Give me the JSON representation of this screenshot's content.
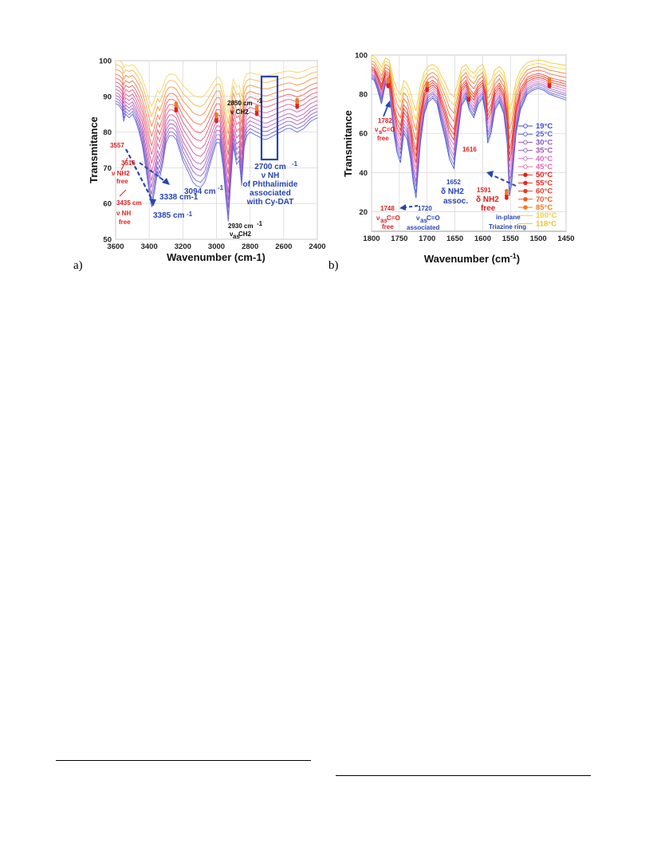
{
  "chart_data": [
    {
      "panel": "a)",
      "type": "line",
      "xlabel": "Wavenumber (cm-1)",
      "ylabel": "Transmitance",
      "xlim": [
        3600,
        2400
      ],
      "ylim": [
        50,
        100
      ],
      "xticks": [
        "3600",
        "3400",
        "3200",
        "3000",
        "2800",
        "2600",
        "2400"
      ],
      "yticks": [
        "50",
        "60",
        "70",
        "80",
        "90",
        "100"
      ],
      "grid": true,
      "temperatures_C": [
        19,
        25,
        30,
        35,
        40,
        45,
        50,
        55,
        60,
        70,
        85,
        100,
        118
      ],
      "series_colors": [
        "#4d5bd6",
        "#6a55d0",
        "#8a52c8",
        "#a24fbd",
        "#bb4cab",
        "#cc4c98",
        "#d84c80",
        "#e2486a",
        "#e85353",
        "#ee6a3b",
        "#f2872e",
        "#f4b13a",
        "#f5d25a"
      ],
      "series_offsets": [
        0,
        -0.5,
        -1,
        -1.5,
        -2,
        -2.6,
        -3.2,
        -3.9,
        -4.6,
        -5.4,
        -6.4,
        -7.4,
        -8.4
      ],
      "series_depth_scale": [
        1.0,
        0.97,
        0.93,
        0.89,
        0.85,
        0.8,
        0.75,
        0.7,
        0.65,
        0.6,
        0.55,
        0.5,
        0.45
      ],
      "base_spectrum": {
        "x": [
          3600,
          3580,
          3560,
          3552,
          3540,
          3520,
          3500,
          3480,
          3460,
          3440,
          3420,
          3400,
          3385,
          3370,
          3350,
          3338,
          3320,
          3300,
          3280,
          3260,
          3240,
          3220,
          3200,
          3180,
          3160,
          3140,
          3120,
          3094,
          3070,
          3050,
          3020,
          3000,
          2980,
          2960,
          2945,
          2930,
          2915,
          2900,
          2880,
          2865,
          2850,
          2835,
          2820,
          2800,
          2780,
          2760,
          2740,
          2720,
          2700,
          2680,
          2660,
          2640,
          2620,
          2600,
          2580,
          2560,
          2540,
          2520,
          2500,
          2480,
          2460,
          2440,
          2420,
          2400
        ],
        "y": [
          88,
          87.5,
          86,
          83,
          85,
          84,
          85,
          83,
          80,
          76,
          70,
          63,
          59,
          63,
          69,
          67,
          71,
          77,
          79,
          79,
          78,
          75,
          72,
          70,
          68,
          66,
          65,
          64.5,
          66,
          69,
          74,
          77,
          77,
          70,
          62,
          55,
          66,
          76,
          71,
          72,
          65,
          76,
          79,
          80,
          79.5,
          79,
          78.5,
          78,
          78,
          78.5,
          79,
          79.5,
          80,
          80.5,
          81,
          81,
          80.5,
          80,
          80.5,
          81,
          82,
          83,
          83.5,
          84
        ]
      },
      "markers": [
        {
          "x": 3240,
          "y": 86
        },
        {
          "x": 3000,
          "y": 83
        },
        {
          "x": 2760,
          "y": 85
        },
        {
          "x": 2520,
          "y": 87
        }
      ],
      "annotations": {
        "a1": "3557",
        "a2": "3516",
        "a3": "ν NH2",
        "a4": "free",
        "a5": "3435 cm",
        "a6": "ν NH",
        "a7": "free",
        "a8": "3338 cm-1",
        "a9": "3385 cm",
        "a10": "3094 cm",
        "a11": "2850 cm",
        "a12": "ν CH2",
        "a13": "2930 cm",
        "a14": "ν",
        "a15": "as",
        "a16": "CH2",
        "a17": "2700 cm",
        "a18": "ν NH",
        "a19": "of Phthalimide",
        "a20": "associated",
        "a21": "with Cy-DAT"
      }
    },
    {
      "panel": "b)",
      "type": "line",
      "xlabel": "Wavenumber (cm",
      "ylabel": "Transmitance",
      "xlim": [
        1800,
        1450
      ],
      "ylim": [
        10,
        100
      ],
      "xticks": [
        "1800",
        "1750",
        "1700",
        "1650",
        "1600",
        "1550",
        "1500",
        "1450"
      ],
      "yticks": [
        "20",
        "40",
        "60",
        "80",
        "100"
      ],
      "grid": true,
      "series": [
        {
          "name": "19°C",
          "color": "#3a4ad0",
          "marker": "circle-open"
        },
        {
          "name": "25°C",
          "color": "#5560d8",
          "marker": "square-open"
        },
        {
          "name": "30°C",
          "color": "#8a58c8",
          "marker": "diamond-open"
        },
        {
          "name": "35°C",
          "color": "#9a5ac0",
          "marker": "x"
        },
        {
          "name": "40°C",
          "color": "#d86ac8",
          "marker": "star"
        },
        {
          "name": "45°C",
          "color": "#e06ab0",
          "marker": "triangle-open"
        },
        {
          "name": "50°C",
          "color": "#e0201a",
          "marker": "circle"
        },
        {
          "name": "55°C",
          "color": "#e82a20",
          "marker": "square"
        },
        {
          "name": "60°C",
          "color": "#e83a28",
          "marker": "diamond"
        },
        {
          "name": "70°C",
          "color": "#ee5a2a",
          "marker": "triangle"
        },
        {
          "name": "85°C",
          "color": "#f07a20",
          "marker": "triangle-down"
        },
        {
          "name": "100°C",
          "color": "#f5d02a",
          "marker": "none"
        },
        {
          "name": "118°C",
          "color": "#f3c12a",
          "marker": "none"
        }
      ],
      "series_offsets": [
        0,
        -0.5,
        -1,
        -1.5,
        -2,
        -2.5,
        -3,
        -3.5,
        -4,
        -5,
        -6,
        -7,
        -8
      ],
      "series_depth_scale": [
        1.0,
        0.97,
        0.93,
        0.9,
        0.86,
        0.82,
        0.78,
        0.74,
        0.7,
        0.64,
        0.58,
        0.52,
        0.46
      ],
      "base_spectrum": {
        "x": [
          1800,
          1795,
          1790,
          1782,
          1775,
          1768,
          1760,
          1754,
          1748,
          1742,
          1736,
          1730,
          1725,
          1720,
          1712,
          1705,
          1698,
          1690,
          1682,
          1675,
          1668,
          1660,
          1652,
          1645,
          1638,
          1630,
          1624,
          1616,
          1608,
          1600,
          1595,
          1591,
          1585,
          1578,
          1570,
          1562,
          1556,
          1552,
          1548,
          1540,
          1532,
          1520,
          1510,
          1500,
          1490,
          1480,
          1470,
          1460,
          1450
        ],
        "y": [
          88,
          87,
          83,
          75,
          85,
          83,
          60,
          50,
          45,
          60,
          57,
          47,
          35,
          27,
          55,
          70,
          76,
          78,
          75,
          66,
          58,
          47,
          42,
          58,
          74,
          78,
          72,
          68,
          75,
          78,
          70,
          55,
          60,
          72,
          76,
          70,
          55,
          28,
          34,
          60,
          72,
          80,
          82,
          83,
          82,
          80,
          79,
          78,
          77
        ]
      },
      "markers": [
        {
          "x": 1770,
          "y": 84
        },
        {
          "x": 1700,
          "y": 82
        },
        {
          "x": 1625,
          "y": 77
        },
        {
          "x": 1557,
          "y": 27
        },
        {
          "x": 1480,
          "y": 84
        }
      ],
      "annotations": {
        "b1": "1782",
        "b2": "ν",
        "b3": "s",
        "b4": "C=O",
        "b5": "free",
        "b6": "1748",
        "b7": "ν",
        "b8": "as",
        "b9": "C=O",
        "b10": "free",
        "b11": "1720",
        "b12": "ν",
        "b13": "as",
        "b14": "C=O",
        "b15": "associated",
        "b16": "1652",
        "b17": "δ NH2",
        "b18": "assoc.",
        "b19": "1616",
        "b20": "1591",
        "b21": "δ NH2",
        "b22": "free",
        "b23": "in-plane",
        "b24": "Triazine ring"
      }
    }
  ],
  "panel_labels": {
    "a": "a)",
    "b": "b)"
  },
  "axis_suffix": {
    "a_cm_sup": "-1",
    "b_close": "-1",
    "b_paren": ")"
  }
}
